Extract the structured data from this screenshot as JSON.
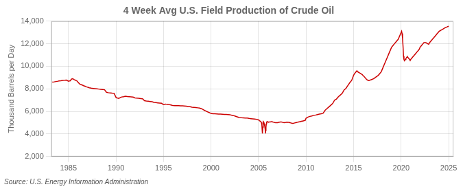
{
  "chart_data": {
    "type": "line",
    "title": "4 Week Avg U.S. Field Production of Crude Oil",
    "ylabel": "Thousand Barrels per Day",
    "annotations": [
      "Source: U.S. Energy Information Administration"
    ],
    "color": "#cc0000",
    "grid": true,
    "xlim": [
      1983.2,
      2025.5
    ],
    "xticks": [
      1985,
      1990,
      1995,
      2000,
      2005,
      2010,
      2015,
      2020,
      2025
    ],
    "ylim": [
      2000,
      14000
    ],
    "yticks": [
      {
        "value": 2000,
        "label": "2,000"
      },
      {
        "value": 4000,
        "label": "4,000"
      },
      {
        "value": 6000,
        "label": "6,000"
      },
      {
        "value": 8000,
        "label": "8,000"
      },
      {
        "value": 10000,
        "label": "10,000"
      },
      {
        "value": 12000,
        "label": "12,000"
      },
      {
        "value": 14000,
        "label": "14,000"
      }
    ],
    "x": [
      1983.3,
      1983.5,
      1983.7,
      1983.9,
      1984.0,
      1984.2,
      1984.4,
      1984.6,
      1984.8,
      1985.0,
      1985.1,
      1985.2,
      1985.3,
      1985.4,
      1985.5,
      1985.6,
      1985.7,
      1985.8,
      1985.9,
      1986.0,
      1986.1,
      1986.2,
      1986.3,
      1986.4,
      1986.5,
      1986.6,
      1986.7,
      1986.8,
      1986.9,
      1987.0,
      1987.2,
      1987.4,
      1987.6,
      1987.8,
      1988.0,
      1988.2,
      1988.4,
      1988.6,
      1988.8,
      1989.0,
      1989.2,
      1989.4,
      1989.6,
      1989.8,
      1990.0,
      1990.1,
      1990.2,
      1990.3,
      1990.4,
      1990.5,
      1990.6,
      1990.8,
      1991.0,
      1991.2,
      1991.4,
      1991.6,
      1991.8,
      1992.0,
      1992.2,
      1992.4,
      1992.6,
      1992.8,
      1993.0,
      1993.2,
      1993.4,
      1993.6,
      1993.8,
      1994.0,
      1994.2,
      1994.4,
      1994.6,
      1994.8,
      1995.0,
      1995.1,
      1995.2,
      1995.3,
      1995.4,
      1995.5,
      1995.6,
      1995.7,
      1995.8,
      1995.9,
      1996.0,
      1996.2,
      1996.4,
      1996.6,
      1996.8,
      1997.0,
      1997.2,
      1997.4,
      1997.6,
      1997.8,
      1998.0,
      1998.2,
      1998.4,
      1998.6,
      1998.8,
      1999.0,
      1999.1,
      1999.2,
      1999.3,
      1999.4,
      1999.5,
      1999.6,
      1999.7,
      1999.8,
      1999.9,
      2000.0,
      2000.2,
      2000.4,
      2000.6,
      2000.8,
      2001.0,
      2001.2,
      2001.4,
      2001.6,
      2001.8,
      2002.0,
      2002.1,
      2002.2,
      2002.3,
      2002.4,
      2002.5,
      2002.6,
      2002.7,
      2002.8,
      2002.9,
      2003.0,
      2003.2,
      2003.4,
      2003.6,
      2003.8,
      2004.0,
      2004.2,
      2004.4,
      2004.6,
      2004.8,
      2005.0,
      2005.05,
      2005.1,
      2005.15,
      2005.2,
      2005.25,
      2005.3,
      2005.35,
      2005.38,
      2005.4,
      2005.42,
      2005.45,
      2005.48,
      2005.5,
      2005.55,
      2005.6,
      2005.65,
      2005.7,
      2005.72,
      2005.75,
      2005.78,
      2005.82,
      2005.85,
      2005.9,
      2005.95,
      2006.0,
      2006.1,
      2006.2,
      2006.3,
      2006.4,
      2006.5,
      2006.6,
      2006.7,
      2006.8,
      2006.9,
      2007.0,
      2007.1,
      2007.2,
      2007.3,
      2007.4,
      2007.5,
      2007.6,
      2007.7,
      2007.8,
      2007.9,
      2008.0,
      2008.1,
      2008.2,
      2008.3,
      2008.4,
      2008.5,
      2008.6,
      2008.7,
      2008.8,
      2008.9,
      2009.0,
      2009.1,
      2009.2,
      2009.3,
      2009.4,
      2009.5,
      2009.6,
      2009.7,
      2009.8,
      2009.9,
      2010.0,
      2010.2,
      2010.4,
      2010.6,
      2010.8,
      2011.0,
      2011.2,
      2011.4,
      2011.6,
      2011.8,
      2012.0,
      2012.2,
      2012.4,
      2012.6,
      2012.8,
      2013.0,
      2013.2,
      2013.4,
      2013.6,
      2013.8,
      2014.0,
      2014.2,
      2014.4,
      2014.6,
      2014.8,
      2015.0,
      2015.1,
      2015.2,
      2015.3,
      2015.35,
      2015.4,
      2015.5,
      2015.6,
      2015.7,
      2015.8,
      2015.9,
      2016.0,
      2016.1,
      2016.2,
      2016.3,
      2016.4,
      2016.5,
      2016.6,
      2016.7,
      2016.8,
      2016.9,
      2017.0,
      2017.1,
      2017.2,
      2017.3,
      2017.4,
      2017.5,
      2017.6,
      2017.7,
      2017.8,
      2017.9,
      2018.0,
      2018.1,
      2018.2,
      2018.3,
      2018.4,
      2018.5,
      2018.6,
      2018.7,
      2018.8,
      2018.9,
      2019.0,
      2019.1,
      2019.2,
      2019.3,
      2019.4,
      2019.5,
      2019.6,
      2019.7,
      2019.8,
      2019.9,
      2020.0,
      2020.05,
      2020.1,
      2020.15,
      2020.2,
      2020.25,
      2020.3,
      2020.35,
      2020.4,
      2020.45,
      2020.5,
      2020.55,
      2020.6,
      2020.65,
      2020.7,
      2020.75,
      2020.8,
      2020.85,
      2020.9,
      2020.95,
      2021.0,
      2021.1,
      2021.2,
      2021.3,
      2021.4,
      2021.5,
      2021.6,
      2021.7,
      2021.8,
      2021.9,
      2022.0,
      2022.1,
      2022.2,
      2022.3,
      2022.4,
      2022.5,
      2022.6,
      2022.7,
      2022.8,
      2022.9,
      2023.0,
      2023.1,
      2023.2,
      2023.3,
      2023.4,
      2023.5,
      2023.6,
      2023.7,
      2023.8,
      2023.9,
      2024.0,
      2024.1,
      2024.2,
      2024.3,
      2024.4,
      2024.5,
      2024.6,
      2024.7,
      2024.8,
      2024.9,
      2025.0
    ],
    "values": [
      8600,
      8620,
      8650,
      8680,
      8700,
      8720,
      8750,
      8760,
      8780,
      8680,
      8700,
      8720,
      8850,
      8900,
      8880,
      8820,
      8780,
      8740,
      8700,
      8600,
      8500,
      8420,
      8380,
      8350,
      8320,
      8280,
      8250,
      8220,
      8180,
      8150,
      8100,
      8060,
      8040,
      8020,
      8000,
      7980,
      7960,
      7940,
      7920,
      7700,
      7660,
      7640,
      7620,
      7610,
      7250,
      7200,
      7180,
      7160,
      7200,
      7250,
      7280,
      7300,
      7350,
      7320,
      7310,
      7290,
      7270,
      7200,
      7180,
      7160,
      7140,
      7120,
      6950,
      6920,
      6900,
      6880,
      6860,
      6800,
      6780,
      6760,
      6740,
      6720,
      6600,
      6620,
      6650,
      6640,
      6630,
      6620,
      6610,
      6590,
      6570,
      6540,
      6520,
      6510,
      6510,
      6510,
      6500,
      6490,
      6480,
      6460,
      6440,
      6420,
      6380,
      6360,
      6340,
      6320,
      6300,
      6240,
      6200,
      6150,
      6100,
      6060,
      6020,
      5980,
      5940,
      5900,
      5860,
      5820,
      5800,
      5790,
      5780,
      5770,
      5760,
      5750,
      5740,
      5730,
      5720,
      5700,
      5680,
      5660,
      5640,
      5620,
      5600,
      5570,
      5540,
      5510,
      5480,
      5460,
      5440,
      5430,
      5420,
      5410,
      5380,
      5360,
      5340,
      5320,
      5300,
      5250,
      5220,
      5180,
      5150,
      5120,
      5080,
      5020,
      4800,
      4400,
      4050,
      4200,
      4600,
      5000,
      5100,
      5050,
      4900,
      4700,
      4400,
      4050,
      4300,
      4600,
      4900,
      5050,
      5100,
      5080,
      5050,
      5060,
      5070,
      5080,
      5090,
      5060,
      5040,
      5020,
      5010,
      5000,
      5010,
      5030,
      5050,
      5070,
      5060,
      5040,
      5020,
      5010,
      5020,
      5030,
      5050,
      5040,
      5030,
      5000,
      4980,
      4960,
      4950,
      4960,
      4980,
      5000,
      5020,
      5040,
      5060,
      5080,
      5100,
      5120,
      5140,
      5160,
      5180,
      5200,
      5400,
      5500,
      5560,
      5600,
      5650,
      5680,
      5720,
      5760,
      5800,
      5850,
      6100,
      6250,
      6400,
      6550,
      6700,
      7000,
      7100,
      7300,
      7450,
      7600,
      7900,
      8050,
      8300,
      8550,
      8750,
      9200,
      9350,
      9450,
      9550,
      9600,
      9530,
      9480,
      9430,
      9380,
      9320,
      9280,
      9180,
      9100,
      9000,
      8900,
      8820,
      8760,
      8740,
      8760,
      8800,
      8820,
      8860,
      8900,
      8960,
      9020,
      9080,
      9140,
      9200,
      9300,
      9400,
      9500,
      9700,
      9900,
      10100,
      10300,
      10500,
      10700,
      10900,
      11100,
      11300,
      11500,
      11700,
      11800,
      11900,
      12000,
      12100,
      12200,
      12300,
      12400,
      12600,
      12800,
      13000,
      13100,
      12900,
      12500,
      11800,
      10900,
      10600,
      10500,
      10550,
      10600,
      10700,
      10750,
      10800,
      10850,
      10800,
      10750,
      10700,
      10650,
      10600,
      10550,
      10600,
      10700,
      10800,
      10900,
      11000,
      11100,
      11200,
      11300,
      11400,
      11500,
      11700,
      11800,
      11900,
      12000,
      12100,
      12100,
      12100,
      12050,
      12000,
      11950,
      12100,
      12200,
      12300,
      12400,
      12500,
      12600,
      12700,
      12800,
      12900,
      13000,
      13100,
      13150,
      13200,
      13250,
      13300,
      13350,
      13400,
      13450,
      13480,
      13520,
      13550
    ]
  }
}
